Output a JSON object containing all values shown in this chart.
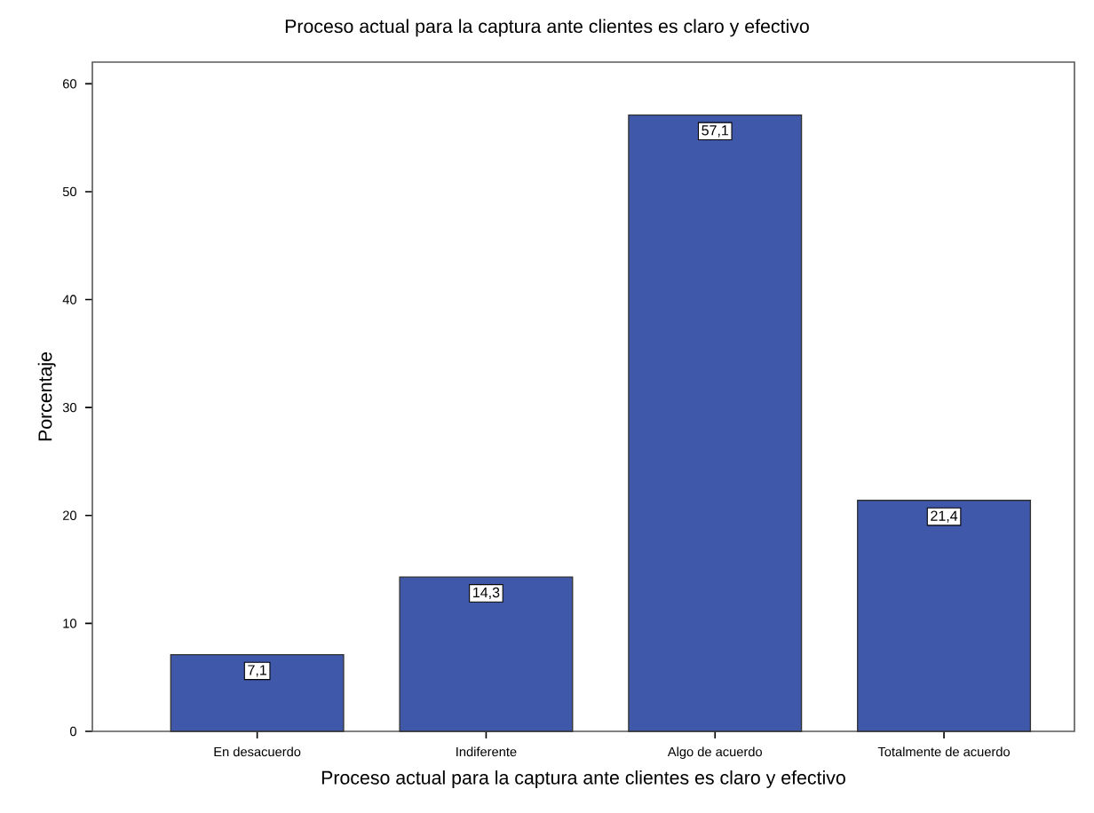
{
  "chart_data": {
    "type": "bar",
    "title": "Proceso actual para la captura ante clientes es claro y efectivo",
    "xlabel": "Proceso actual para la captura ante clientes es claro y efectivo",
    "ylabel": "Porcentaje",
    "categories": [
      "En desacuerdo",
      "Indiferente",
      "Algo de acuerdo",
      "Totalmente de acuerdo"
    ],
    "values": [
      7.1,
      14.3,
      57.1,
      21.4
    ],
    "value_labels": [
      "7,1",
      "14,3",
      "57,1",
      "21,4"
    ],
    "color": "#3f58aa",
    "ylim": [
      0,
      62
    ],
    "yticks": [
      0,
      10,
      20,
      30,
      40,
      50,
      60
    ]
  }
}
